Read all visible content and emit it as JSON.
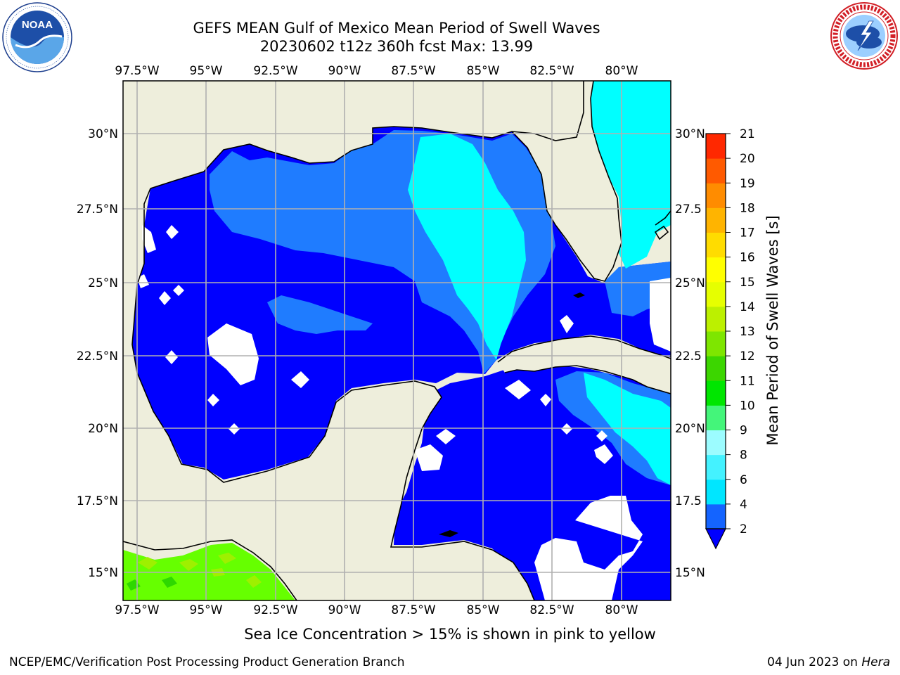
{
  "header": {
    "title_line1": "GEFS MEAN Gulf of Mexico Mean Period of Swell Waves",
    "title_line2": "20230602 t12z 360h fcst   Max: 13.99"
  },
  "logos": {
    "noaa_text": "NOAA",
    "noaa_ring": "NATIONAL OCEANIC AND ATMOSPHERIC ADMINISTRATION · U.S. DEPARTMENT OF COMMERCE",
    "nws_ring": "NATIONAL WEATHER SERVICE"
  },
  "map": {
    "lon_ticks": [
      "97.5°W",
      "95°W",
      "92.5°W",
      "90°W",
      "87.5°W",
      "85°W",
      "82.5°W",
      "80°W"
    ],
    "lat_ticks_left": [
      "30°N",
      "27.5°N",
      "25°N",
      "22.5°N",
      "20°N",
      "17.5°N",
      "15°N"
    ],
    "lat_ticks_right": [
      "30°N",
      "27.5",
      "25°N",
      "22.5",
      "20°N",
      "17.5",
      "15°N"
    ],
    "colors": {
      "land": "#eeeedc",
      "grid": "#b0b0b0",
      "period_2_4": "#0000ff",
      "period_4_6": "#1f7cff",
      "period_6_8": "#00ffff",
      "ice": "#66ff00"
    }
  },
  "colorbar": {
    "label": "Mean Period of Swell Waves [s]",
    "ticks": [
      "2",
      "4",
      "6",
      "8",
      "9",
      "10",
      "11",
      "12",
      "13",
      "14",
      "15",
      "16",
      "17",
      "18",
      "19",
      "20",
      "21"
    ],
    "colors": [
      "#1464ff",
      "#00e6ff",
      "#44f2ff",
      "#9cfcff",
      "#44f57a",
      "#00e600",
      "#3cd600",
      "#7ee600",
      "#bcf000",
      "#e6ff00",
      "#ffff00",
      "#ffdc00",
      "#ffb400",
      "#ff8c00",
      "#ff5a00",
      "#ff2800"
    ],
    "extend_color": "#0000ff"
  },
  "footer": {
    "note": "Sea Ice Concentration > 15% is shown in pink to yellow",
    "credit_left": "NCEP/EMC/Verification Post Processing Product Generation Branch",
    "date": "04 Jun 2023 on ",
    "machine": "Hera"
  }
}
